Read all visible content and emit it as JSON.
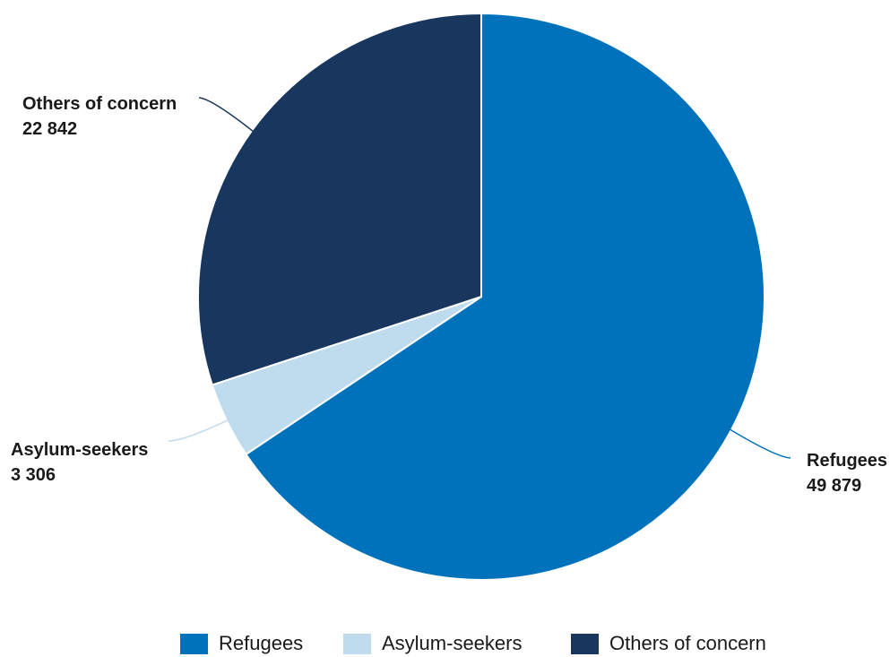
{
  "chart_data": {
    "type": "pie",
    "slices": [
      {
        "name": "Refugees",
        "value": 49879,
        "value_label": "49 879",
        "color": "#0072bc"
      },
      {
        "name": "Asylum-seekers",
        "value": 3306,
        "value_label": "3 306",
        "color": "#bfdbee"
      },
      {
        "name": "Others of concern",
        "value": 22842,
        "value_label": "22 842",
        "color": "#18365e"
      }
    ],
    "start_angle": "12 o'clock",
    "direction": "clockwise",
    "legend_position": "bottom"
  },
  "legend": {
    "items": [
      {
        "label": "Refugees",
        "color": "#0072bc"
      },
      {
        "label": "Asylum-seekers",
        "color": "#bfdbee"
      },
      {
        "label": "Others of concern",
        "color": "#18365e"
      }
    ]
  }
}
